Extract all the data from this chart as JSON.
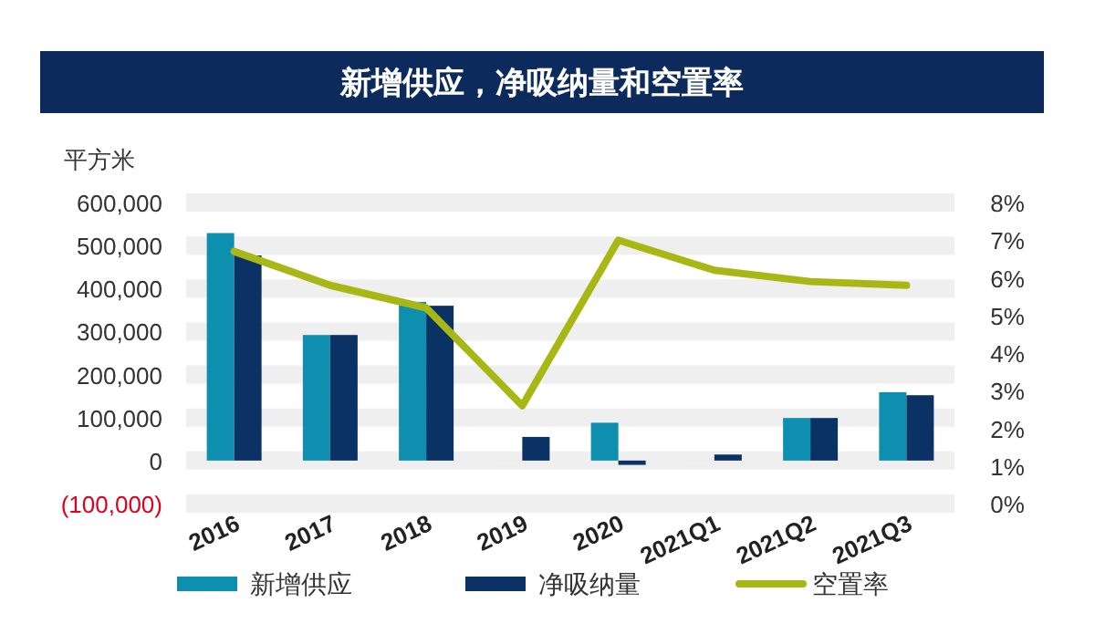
{
  "chart_data": {
    "type": "bar",
    "title": "新增供应，净吸纳量和空置率",
    "ylabel": "平方米",
    "categories": [
      "2016",
      "2017",
      "2018",
      "2019",
      "2020",
      "2021Q1",
      "2021Q2",
      "2021Q3"
    ],
    "series": [
      {
        "name": "新增供应",
        "color": "#0e8fb0",
        "values": [
          529000,
          292000,
          369000,
          0,
          88000,
          0,
          99000,
          159000
        ]
      },
      {
        "name": "净吸纳量",
        "color": "#0b3264",
        "values": [
          477000,
          292000,
          360000,
          55000,
          -10000,
          14000,
          99000,
          152000
        ]
      },
      {
        "name": "空置率",
        "type": "line",
        "axis": "y2",
        "color": "#a8b714",
        "values": [
          6.7,
          5.8,
          5.2,
          2.6,
          7.0,
          6.2,
          5.9,
          5.8
        ]
      }
    ],
    "ylim": [
      -100000,
      600000
    ],
    "yticks": [
      {
        "value": -100000,
        "label": "(100,000)"
      },
      {
        "value": 0,
        "label": "0"
      },
      {
        "value": 100000,
        "label": "100,000"
      },
      {
        "value": 200000,
        "label": "200,000"
      },
      {
        "value": 300000,
        "label": "300,000"
      },
      {
        "value": 400000,
        "label": "400,000"
      },
      {
        "value": 500000,
        "label": "500,000"
      },
      {
        "value": 600000,
        "label": "600,000"
      }
    ],
    "y2lim": [
      0,
      8
    ],
    "y2ticks": [
      {
        "value": 0,
        "label": "0%"
      },
      {
        "value": 1,
        "label": "1%"
      },
      {
        "value": 2,
        "label": "2%"
      },
      {
        "value": 3,
        "label": "3%"
      },
      {
        "value": 4,
        "label": "4%"
      },
      {
        "value": 5,
        "label": "5%"
      },
      {
        "value": 6,
        "label": "6%"
      },
      {
        "value": 7,
        "label": "7%"
      },
      {
        "value": 8,
        "label": "8%"
      }
    ],
    "grid": "y",
    "legend": "bottom"
  }
}
